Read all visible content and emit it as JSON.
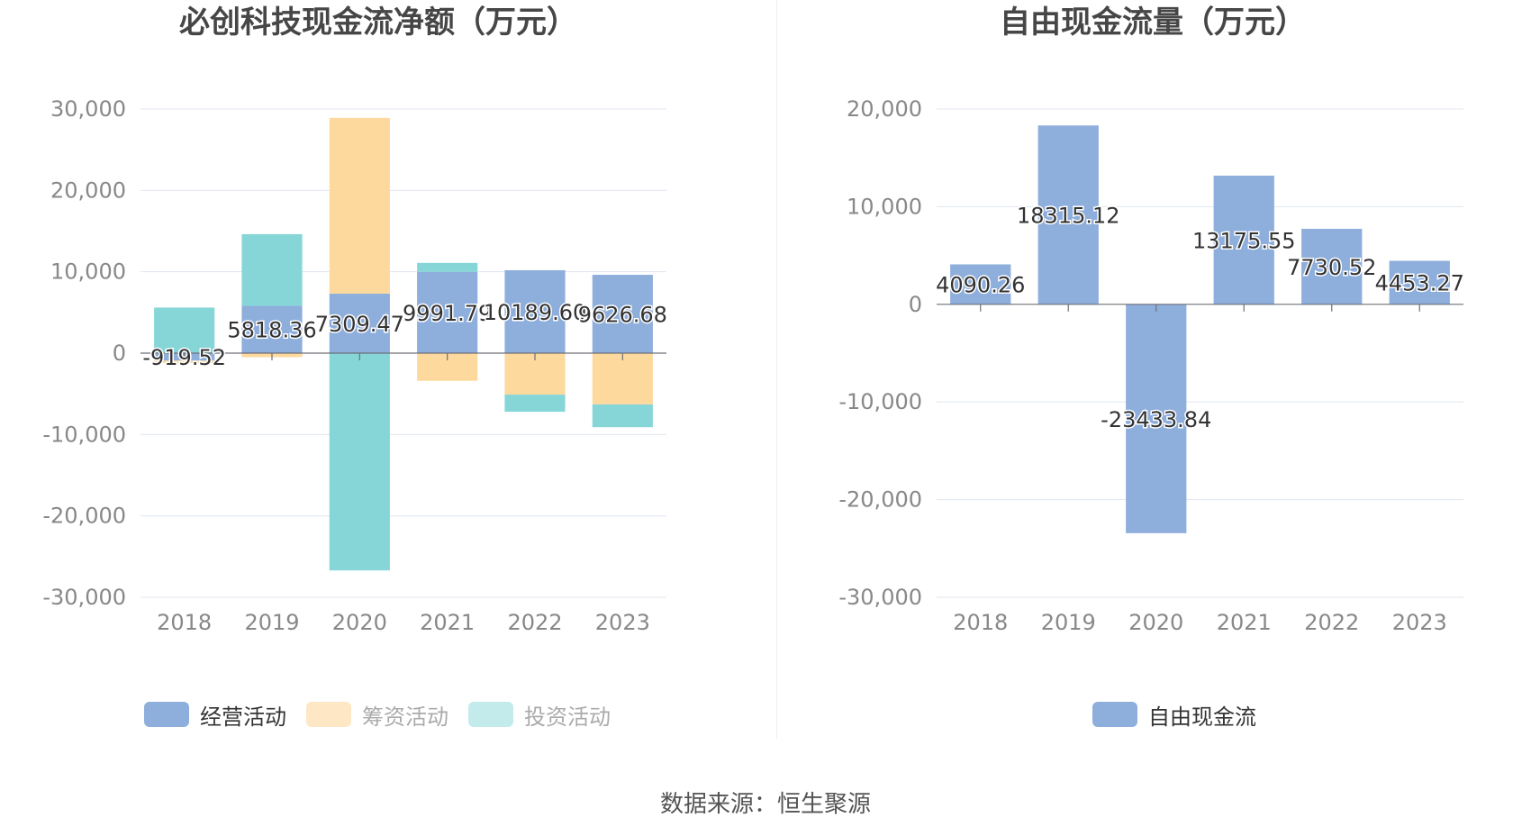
{
  "titles": {
    "left": "必创科技现金流净额（万元）",
    "right": "自由现金流量（万元）"
  },
  "legend_left": [
    {
      "label": "经营活动",
      "color": "#8eaedc",
      "active": true
    },
    {
      "label": "筹资活动",
      "color": "#fed99d",
      "active": false
    },
    {
      "label": "投资活动",
      "color": "#86d6d8",
      "active": false
    }
  ],
  "legend_right": [
    {
      "label": "自由现金流",
      "color": "#8eaedc",
      "active": true
    }
  ],
  "source": "数据来源：恒生聚源",
  "chart_data": [
    {
      "type": "bar",
      "stacked": true,
      "title": "必创科技现金流净额（万元）",
      "categories": [
        "2018",
        "2019",
        "2020",
        "2021",
        "2022",
        "2023"
      ],
      "ylim": [
        -30000,
        30000
      ],
      "yticks": [
        30000,
        20000,
        10000,
        0,
        -10000,
        -20000,
        -30000
      ],
      "ytick_labels": [
        "30,000",
        "20,000",
        "10,000",
        "0",
        "-10,000",
        "-20,000",
        "-30,000"
      ],
      "grid": true,
      "legend_position": "bottom",
      "series": [
        {
          "name": "经营活动",
          "color": "#8eaedc",
          "values": [
            -919.52,
            5818.36,
            7309.47,
            9991.79,
            10189.6,
            9626.68
          ],
          "labels": [
            "-919.52",
            "5818.36",
            "7309.47",
            "9991.79",
            "10189.60",
            "9626.68"
          ]
        },
        {
          "name": "筹资活动",
          "color": "#fed99d",
          "values": [
            -300,
            -500,
            21600,
            -3400,
            -5100,
            -6300
          ]
        },
        {
          "name": "投资活动",
          "color": "#86d6d8",
          "values": [
            5600,
            8800,
            -26700,
            1100,
            -2100,
            -2800
          ]
        }
      ]
    },
    {
      "type": "bar",
      "title": "自由现金流量（万元）",
      "categories": [
        "2018",
        "2019",
        "2020",
        "2021",
        "2022",
        "2023"
      ],
      "ylim": [
        -30000,
        20000
      ],
      "yticks": [
        20000,
        10000,
        0,
        -10000,
        -20000,
        -30000
      ],
      "ytick_labels": [
        "20,000",
        "10,000",
        "0",
        "-10,000",
        "-20,000",
        "-30,000"
      ],
      "grid": true,
      "legend_position": "bottom",
      "series": [
        {
          "name": "自由现金流",
          "color": "#8eaedc",
          "values": [
            4090.26,
            18315.12,
            -23433.84,
            13175.55,
            7730.52,
            4453.27
          ],
          "labels": [
            "4090.26",
            "18315.12",
            "-23433.84",
            "13175.55",
            "7730.52",
            "4453.27"
          ]
        }
      ]
    }
  ]
}
